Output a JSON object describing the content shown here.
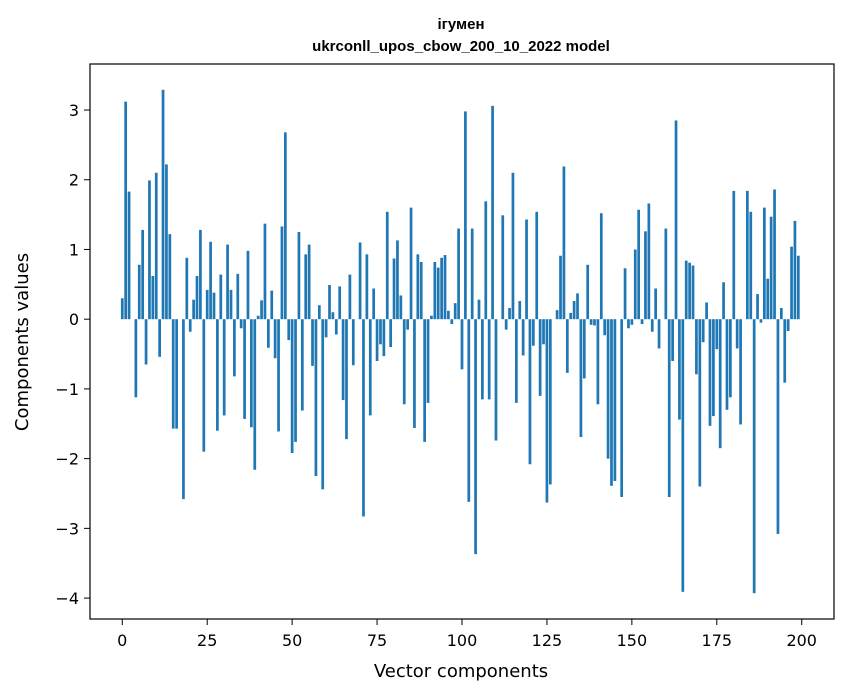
{
  "chart_data": {
    "type": "bar",
    "title": "ігумен",
    "subtitle": "ukrconll_upos_cbow_200_10_2022 model",
    "xlabel": "Vector components",
    "ylabel": "Components values",
    "xlim": [
      -9.5,
      209.5
    ],
    "ylim": [
      -4.3,
      3.66
    ],
    "xticks": [
      0,
      25,
      50,
      75,
      100,
      125,
      150,
      175,
      200
    ],
    "yticks": [
      -4,
      -3,
      -2,
      -1,
      0,
      1,
      2,
      3
    ],
    "bar_color": "#1f77b4",
    "grid": false,
    "values": [
      0.3,
      3.12,
      1.83,
      0.0,
      -1.12,
      0.78,
      1.28,
      -0.65,
      1.99,
      0.62,
      2.1,
      -0.54,
      3.29,
      2.22,
      1.22,
      -1.57,
      -1.57,
      0.0,
      -2.58,
      0.88,
      -0.18,
      0.28,
      0.62,
      1.28,
      -1.9,
      0.42,
      1.11,
      0.38,
      -1.6,
      0.64,
      -1.38,
      1.07,
      0.42,
      -0.82,
      0.65,
      -0.13,
      -1.43,
      0.98,
      -1.55,
      -2.16,
      0.05,
      0.27,
      1.37,
      -0.41,
      0.41,
      -0.56,
      -1.61,
      1.33,
      2.68,
      -0.3,
      -1.92,
      -1.76,
      1.25,
      -1.31,
      0.93,
      1.07,
      -0.67,
      -2.25,
      0.2,
      -2.44,
      -0.26,
      0.49,
      0.1,
      -0.22,
      0.47,
      -1.16,
      -1.72,
      0.64,
      -0.66,
      0.0,
      1.1,
      -2.83,
      0.93,
      -1.38,
      0.44,
      -0.6,
      -0.36,
      -0.53,
      1.54,
      -0.4,
      0.87,
      1.13,
      0.34,
      -1.22,
      -0.15,
      1.6,
      -1.56,
      0.93,
      0.82,
      -1.76,
      -1.2,
      0.05,
      0.82,
      0.74,
      0.88,
      0.92,
      0.12,
      -0.07,
      0.23,
      1.3,
      -0.72,
      2.98,
      -2.62,
      1.3,
      -3.37,
      0.28,
      -1.15,
      1.69,
      -1.15,
      3.06,
      -1.74,
      0.0,
      1.49,
      -0.15,
      0.16,
      2.1,
      -1.2,
      0.26,
      -0.52,
      1.43,
      -2.08,
      -0.38,
      1.54,
      -1.1,
      -0.36,
      -2.63,
      -2.37,
      0.0,
      0.13,
      0.91,
      2.19,
      -0.77,
      0.09,
      0.26,
      0.37,
      -1.69,
      -0.85,
      0.78,
      -0.08,
      -0.09,
      -1.22,
      1.52,
      -0.23,
      -2.0,
      -2.39,
      -2.32,
      0.0,
      -2.55,
      0.73,
      -0.13,
      -0.08,
      1.0,
      1.57,
      -0.07,
      1.26,
      1.66,
      -0.18,
      0.44,
      -0.42,
      0.0,
      1.3,
      -2.55,
      -0.6,
      2.85,
      -1.44,
      -3.91,
      0.84,
      0.81,
      0.77,
      -0.79,
      -2.4,
      -0.33,
      0.24,
      -1.53,
      -1.39,
      -0.43,
      -1.85,
      0.53,
      -1.3,
      -1.12,
      1.84,
      -0.42,
      -1.51,
      0.0,
      1.84,
      1.54,
      -3.93,
      0.36,
      -0.05,
      1.6,
      0.58,
      1.47,
      1.86,
      -3.08,
      0.16,
      -0.91,
      -0.17,
      1.04,
      1.41,
      0.91
    ]
  }
}
